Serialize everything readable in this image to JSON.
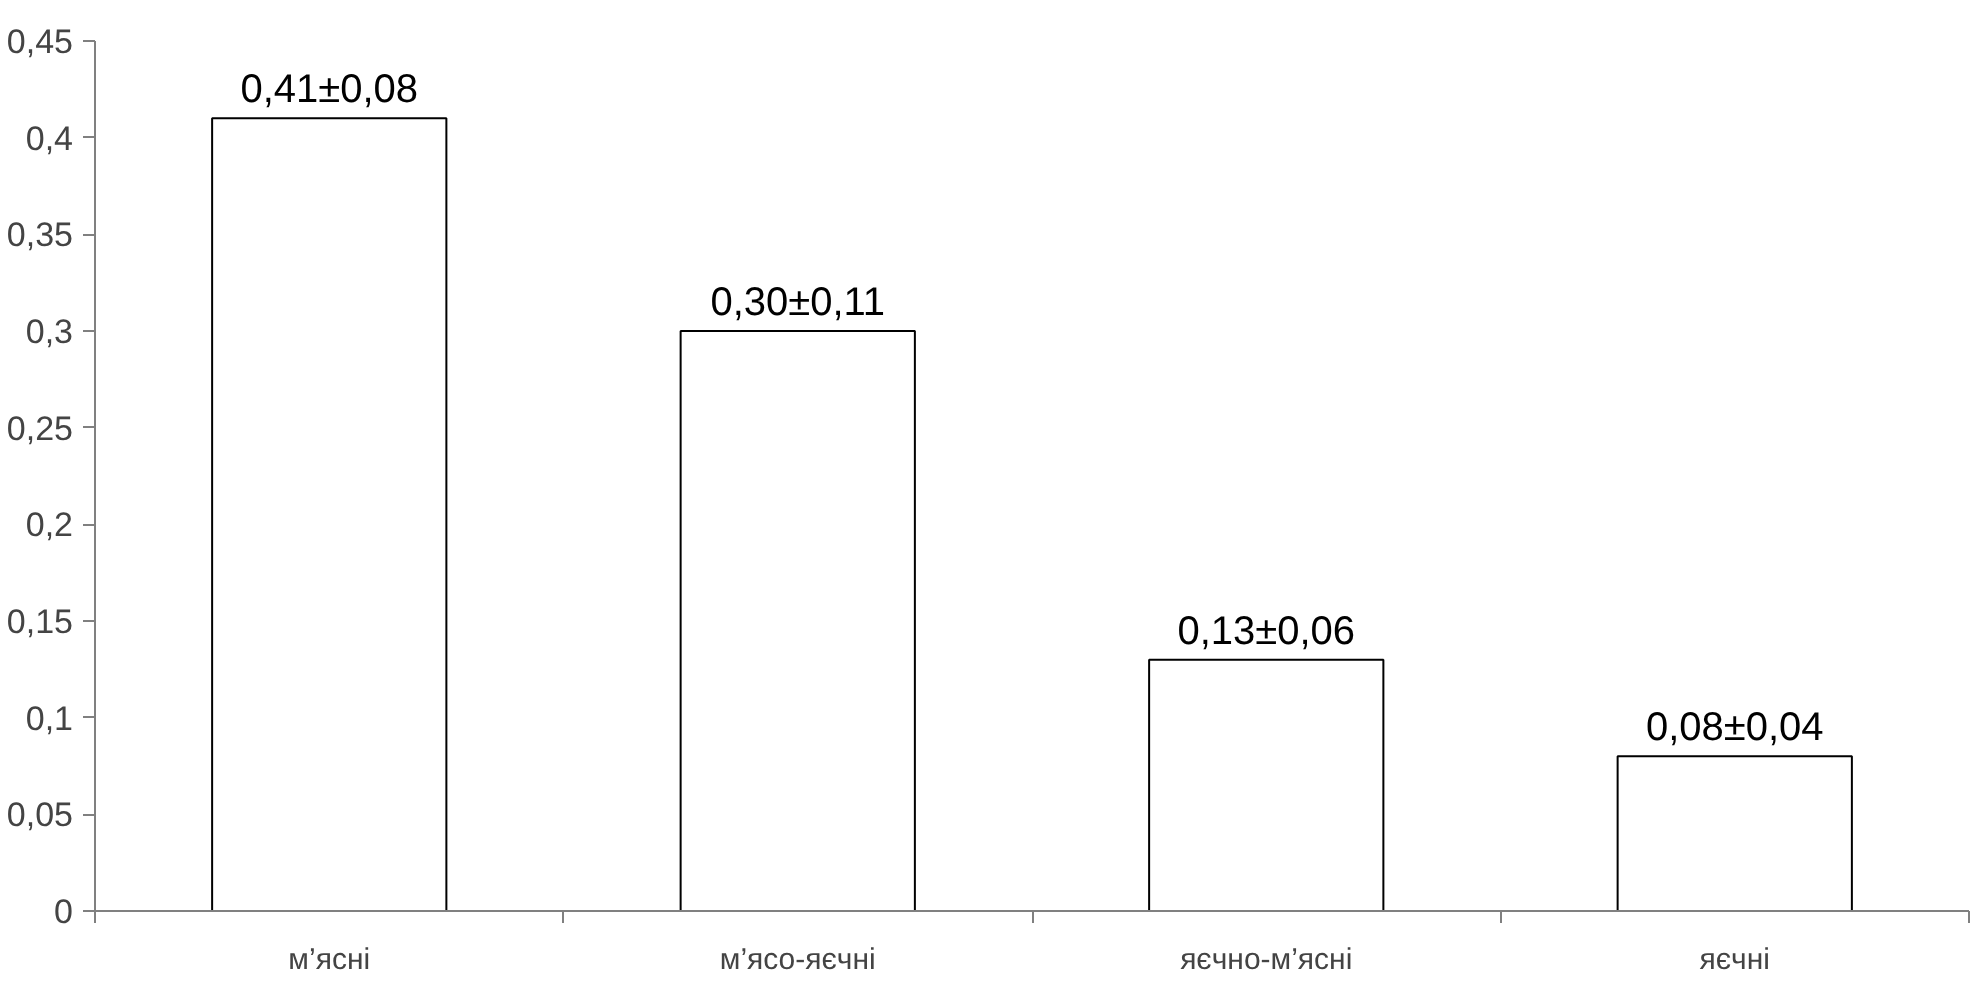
{
  "chart_data": {
    "type": "bar",
    "categories": [
      "м’ясні",
      "м’ясо-яєчні",
      "яєчно-м’ясні",
      "яєчні"
    ],
    "values": [
      0.41,
      0.3,
      0.13,
      0.08
    ],
    "value_labels": [
      "0,41±0,08",
      "0,30±0,11",
      "0,13±0,06",
      "0,08±0,04"
    ],
    "color": "#ffffff",
    "ylim": [
      0,
      0.45
    ],
    "yticks": [
      0,
      {
        "value": 0.05,
        "label": "0,05"
      },
      {
        "value": 0.1,
        "label": "0,1"
      },
      {
        "value": 0.15,
        "label": "0,15"
      },
      {
        "value": 0.2,
        "label": "0,2"
      },
      {
        "value": 0.25,
        "label": "0,25"
      },
      {
        "value": 0.3,
        "label": "0,3"
      },
      {
        "value": 0.35,
        "label": "0,35"
      },
      {
        "value": 0.4,
        "label": "0,4"
      },
      {
        "value": 0.45,
        "label": "0,45"
      }
    ],
    "grid": false
  }
}
